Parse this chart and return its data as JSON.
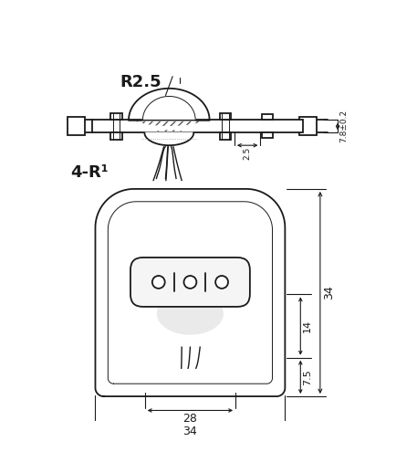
{
  "bg_color": "#ffffff",
  "line_color": "#1a1a1a",
  "dim_color": "#1a1a1a",
  "top_view": {
    "label_R25": "R2.5",
    "label_25": "2.5",
    "label_78": "7.8±0.2"
  },
  "bottom_view": {
    "label_4R": "4-R¹",
    "label_34_h": "34",
    "label_34_w": "34",
    "label_28": "28",
    "label_14": "14",
    "label_75": "7.5"
  }
}
